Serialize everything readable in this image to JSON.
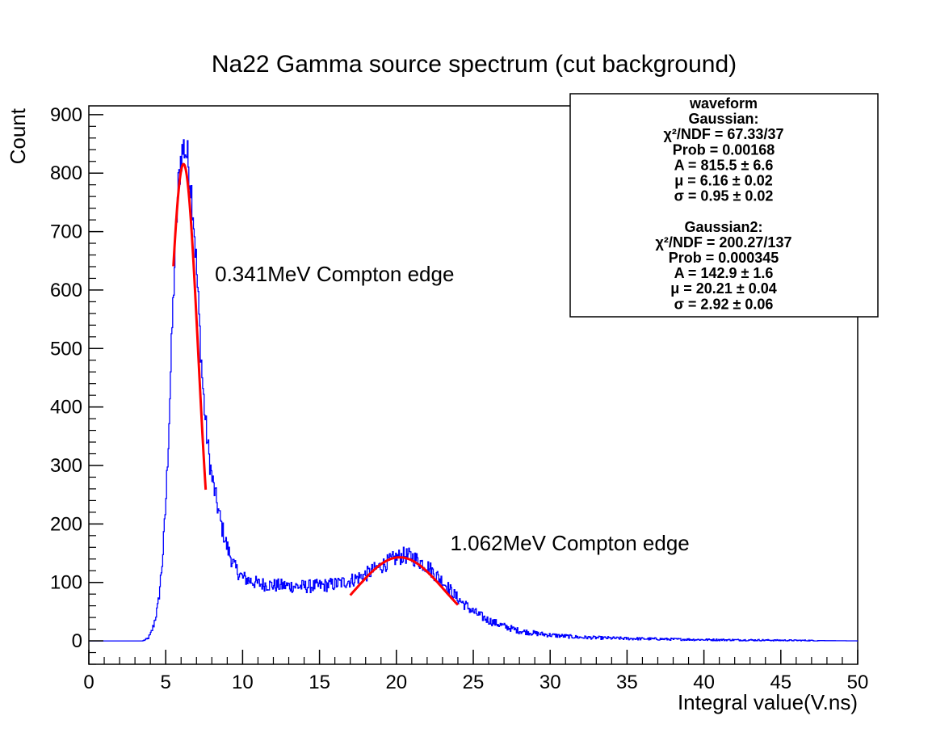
{
  "chart_data": {
    "type": "line",
    "title": "Na22 Gamma source spectrum (cut background)",
    "xlabel": "Integral value(V.ns)",
    "ylabel": "Count",
    "xlim": [
      0,
      50
    ],
    "ylim": [
      -40,
      915
    ],
    "x_ticks": [
      0,
      5,
      10,
      15,
      20,
      25,
      30,
      35,
      40,
      45,
      50
    ],
    "x_tick_labels": [
      "0",
      "5",
      "10",
      "15",
      "20",
      "25",
      "30",
      "35",
      "40",
      "45",
      "50"
    ],
    "y_ticks": [
      0,
      100,
      200,
      300,
      400,
      500,
      600,
      700,
      800,
      900
    ],
    "y_tick_labels": [
      "0",
      "100",
      "200",
      "300",
      "400",
      "500",
      "600",
      "700",
      "800",
      "900"
    ],
    "grid": false,
    "series": [
      {
        "color": "#0000ff",
        "step": 0.05,
        "points": [
          [
            0,
            0
          ],
          [
            3.5,
            0
          ],
          [
            3.8,
            3
          ],
          [
            4.0,
            10
          ],
          [
            4.2,
            25
          ],
          [
            4.5,
            60
          ],
          [
            4.8,
            140
          ],
          [
            5.0,
            230
          ],
          [
            5.2,
            360
          ],
          [
            5.4,
            520
          ],
          [
            5.6,
            660
          ],
          [
            5.8,
            770
          ],
          [
            6.0,
            830
          ],
          [
            6.2,
            845
          ],
          [
            6.4,
            830
          ],
          [
            6.6,
            790
          ],
          [
            6.8,
            730
          ],
          [
            7.0,
            640
          ],
          [
            7.2,
            540
          ],
          [
            7.4,
            440
          ],
          [
            7.6,
            370
          ],
          [
            7.8,
            320
          ],
          [
            8.0,
            280
          ],
          [
            8.3,
            240
          ],
          [
            8.6,
            200
          ],
          [
            9.0,
            160
          ],
          [
            9.5,
            125
          ],
          [
            10.0,
            108
          ],
          [
            11.0,
            98
          ],
          [
            12.0,
            95
          ],
          [
            13.0,
            94
          ],
          [
            14.0,
            93
          ],
          [
            15.0,
            94
          ],
          [
            16.0,
            97
          ],
          [
            17.0,
            103
          ],
          [
            18.0,
            113
          ],
          [
            19.0,
            128
          ],
          [
            20.0,
            142
          ],
          [
            20.5,
            146
          ],
          [
            21.0,
            144
          ],
          [
            22.0,
            128
          ],
          [
            23.0,
            102
          ],
          [
            24.0,
            72
          ],
          [
            25.0,
            50
          ],
          [
            26.0,
            35
          ],
          [
            27.0,
            25
          ],
          [
            28.0,
            17
          ],
          [
            29.0,
            13
          ],
          [
            30.0,
            10
          ],
          [
            32.0,
            6
          ],
          [
            35.0,
            4
          ],
          [
            40.0,
            2
          ],
          [
            45.0,
            1
          ],
          [
            50.0,
            0
          ]
        ]
      }
    ],
    "fits": [
      {
        "name": "Gaussian",
        "color": "#ff0000",
        "A": 815.5,
        "mu": 6.16,
        "sigma": 0.95,
        "range": [
          5.5,
          7.6
        ]
      },
      {
        "name": "Gaussian2",
        "color": "#ff0000",
        "A": 142.9,
        "mu": 20.21,
        "sigma": 2.92,
        "range": [
          17.0,
          24.0
        ]
      }
    ],
    "annotations": [
      {
        "text": "0.341MeV Compton edge",
        "x": 8.2,
        "y": 615
      },
      {
        "text": "1.062MeV Compton edge",
        "x": 23.5,
        "y": 155
      }
    ],
    "stats_box": {
      "placement": "top-right",
      "lines": [
        "waveform",
        "Gaussian:",
        "χ²/NDF = 67.33/37",
        "Prob = 0.00168",
        "A = 815.5 ± 6.6",
        "μ = 6.16 ± 0.02",
        "σ = 0.95 ± 0.02",
        "",
        "Gaussian2:",
        "χ²/NDF = 200.27/137",
        "Prob = 0.000345",
        "A = 142.9 ± 1.6",
        "μ = 20.21 ± 0.04",
        "σ = 2.92 ± 0.06"
      ]
    }
  }
}
